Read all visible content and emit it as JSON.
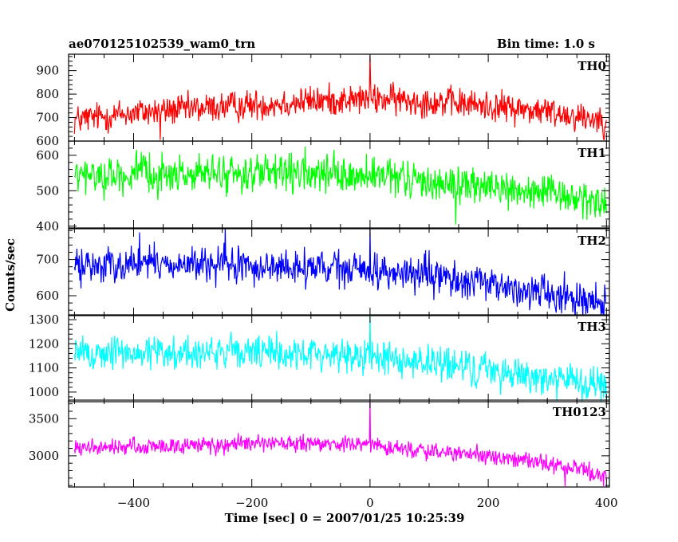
{
  "header": {
    "title": "ae070125102539_wam0_trn",
    "bin_time": "Bin time: 1.0 s"
  },
  "axes": {
    "xlabel": "Time [sec] 0 = 2007/01/25 10:25:39",
    "ylabel": "Counts/sec",
    "x_ticks": [
      "−400",
      "−200",
      "0",
      "200",
      "400"
    ]
  },
  "chart_data": [
    {
      "type": "line",
      "name": "TH0",
      "color": "#ff0000",
      "xlim": [
        -510,
        405
      ],
      "ylim": [
        600,
        970
      ],
      "yticks": [
        600,
        700,
        800,
        900
      ],
      "ytick_labels": [
        "600",
        "700",
        "800",
        "900"
      ],
      "trend": [
        [
          -500,
          690
        ],
        [
          -400,
          720
        ],
        [
          -250,
          745
        ],
        [
          -100,
          770
        ],
        [
          0,
          780
        ],
        [
          100,
          770
        ],
        [
          200,
          750
        ],
        [
          300,
          725
        ],
        [
          400,
          690
        ]
      ],
      "noise_amplitude": 40,
      "spikes": [
        [
          -355,
          605
        ],
        [
          0,
          965
        ],
        [
          395,
          610
        ]
      ]
    },
    {
      "type": "line",
      "name": "TH1",
      "color": "#00ff00",
      "xlim": [
        -510,
        405
      ],
      "ylim": [
        395,
        640
      ],
      "yticks": [
        400,
        500,
        600
      ],
      "ytick_labels": [
        "400",
        "500",
        "600"
      ],
      "trend": [
        [
          -500,
          540
        ],
        [
          -400,
          545
        ],
        [
          -200,
          548
        ],
        [
          0,
          540
        ],
        [
          100,
          525
        ],
        [
          200,
          510
        ],
        [
          300,
          490
        ],
        [
          400,
          465
        ]
      ],
      "noise_amplitude": 32,
      "spikes": [
        [
          -395,
          615
        ],
        [
          -110,
          625
        ],
        [
          145,
          405
        ],
        [
          230,
          475
        ]
      ]
    },
    {
      "type": "line",
      "name": "TH2",
      "color": "#0000ff",
      "xlim": [
        -510,
        405
      ],
      "ylim": [
        545,
        785
      ],
      "yticks": [
        600,
        700
      ],
      "ytick_labels": [
        "600",
        "700"
      ],
      "trend": [
        [
          -500,
          680
        ],
        [
          -400,
          690
        ],
        [
          -200,
          680
        ],
        [
          0,
          670
        ],
        [
          100,
          655
        ],
        [
          200,
          630
        ],
        [
          300,
          610
        ],
        [
          400,
          580
        ]
      ],
      "noise_amplitude": 30,
      "spikes": [
        [
          -390,
          775
        ],
        [
          -245,
          785
        ],
        [
          0,
          785
        ],
        [
          270,
          560
        ]
      ]
    },
    {
      "type": "line",
      "name": "TH3",
      "color": "#00ffff",
      "xlim": [
        -510,
        405
      ],
      "ylim": [
        960,
        1320
      ],
      "yticks": [
        1000,
        1100,
        1200,
        1300
      ],
      "ytick_labels": [
        "1000",
        "1100",
        "1200",
        "1300"
      ],
      "trend": [
        [
          -500,
          1160
        ],
        [
          -300,
          1165
        ],
        [
          -100,
          1160
        ],
        [
          0,
          1150
        ],
        [
          100,
          1120
        ],
        [
          200,
          1090
        ],
        [
          300,
          1060
        ],
        [
          400,
          1020
        ]
      ],
      "noise_amplitude": 45,
      "spikes": [
        [
          0,
          1320
        ],
        [
          400,
          965
        ]
      ]
    },
    {
      "type": "line",
      "name": "TH0123",
      "color": "#ff00ff",
      "xlim": [
        -510,
        405
      ],
      "ylim": [
        2580,
        3750
      ],
      "yticks": [
        3000,
        3500
      ],
      "ytick_labels": [
        "3000",
        "3500"
      ],
      "trend": [
        [
          -500,
          3100
        ],
        [
          -400,
          3120
        ],
        [
          -200,
          3160
        ],
        [
          0,
          3150
        ],
        [
          100,
          3060
        ],
        [
          200,
          2990
        ],
        [
          300,
          2900
        ],
        [
          400,
          2740
        ]
      ],
      "noise_amplitude": 70,
      "spikes": [
        [
          0,
          3750
        ],
        [
          330,
          2590
        ],
        [
          395,
          2590
        ]
      ]
    }
  ]
}
